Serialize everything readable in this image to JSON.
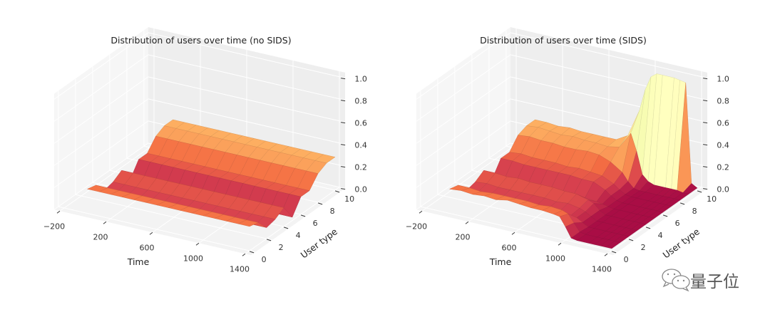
{
  "chart_data": [
    {
      "type": "surface3d",
      "title": "Distribution of users over time (no SIDS)",
      "xlabel": "Time",
      "ylabel": "User type",
      "colormap": "Spectral",
      "xlim": [
        -250,
        1450
      ],
      "ylim": [
        -0.5,
        10.5
      ],
      "zlim": [
        0,
        1.05
      ],
      "xticks": [
        -200,
        200,
        600,
        1000,
        1400
      ],
      "xtick_labels": [
        "−200",
        "200",
        "600",
        "1000",
        "1400"
      ],
      "yticks": [
        0,
        2,
        4,
        6,
        8,
        10
      ],
      "ytick_labels": [
        "0",
        "2",
        "4",
        "6",
        "8",
        "10"
      ],
      "zticks": [
        0,
        0.2,
        0.4,
        0.6,
        0.8,
        1.0
      ],
      "ztick_labels": [
        "0.0",
        "0.2",
        "0.4",
        "0.6",
        "0.8",
        "1.0"
      ],
      "user_type": [
        0,
        1,
        2,
        3,
        4,
        5,
        6,
        7,
        8,
        9,
        10
      ],
      "time": [
        0,
        100,
        200,
        300,
        400,
        500,
        600,
        700,
        800,
        900,
        1000,
        1100,
        1200,
        1300,
        1400
      ],
      "z": [
        [
          0.22,
          0.2,
          0.1,
          0.12,
          0.17,
          0.03,
          0.16,
          0.16,
          0.26,
          0.3,
          0.3
        ],
        [
          0.22,
          0.2,
          0.1,
          0.12,
          0.17,
          0.03,
          0.16,
          0.16,
          0.26,
          0.3,
          0.3
        ],
        [
          0.22,
          0.2,
          0.1,
          0.12,
          0.17,
          0.03,
          0.16,
          0.16,
          0.26,
          0.3,
          0.3
        ],
        [
          0.22,
          0.2,
          0.1,
          0.12,
          0.17,
          0.03,
          0.16,
          0.16,
          0.26,
          0.3,
          0.3
        ],
        [
          0.22,
          0.2,
          0.1,
          0.12,
          0.17,
          0.03,
          0.16,
          0.16,
          0.26,
          0.3,
          0.3
        ],
        [
          0.22,
          0.2,
          0.1,
          0.12,
          0.17,
          0.03,
          0.16,
          0.16,
          0.26,
          0.3,
          0.3
        ],
        [
          0.22,
          0.2,
          0.1,
          0.12,
          0.17,
          0.03,
          0.16,
          0.16,
          0.26,
          0.3,
          0.3
        ],
        [
          0.22,
          0.2,
          0.1,
          0.12,
          0.17,
          0.03,
          0.16,
          0.16,
          0.26,
          0.3,
          0.3
        ],
        [
          0.22,
          0.2,
          0.1,
          0.12,
          0.17,
          0.03,
          0.16,
          0.16,
          0.26,
          0.3,
          0.3
        ],
        [
          0.22,
          0.2,
          0.1,
          0.12,
          0.17,
          0.03,
          0.16,
          0.16,
          0.26,
          0.3,
          0.3
        ],
        [
          0.22,
          0.2,
          0.1,
          0.12,
          0.17,
          0.03,
          0.16,
          0.16,
          0.26,
          0.3,
          0.3
        ],
        [
          0.22,
          0.2,
          0.1,
          0.12,
          0.17,
          0.03,
          0.16,
          0.16,
          0.26,
          0.3,
          0.3
        ],
        [
          0.22,
          0.2,
          0.1,
          0.12,
          0.17,
          0.03,
          0.16,
          0.16,
          0.26,
          0.3,
          0.3
        ],
        [
          0.22,
          0.2,
          0.1,
          0.12,
          0.17,
          0.03,
          0.16,
          0.16,
          0.26,
          0.3,
          0.3
        ],
        [
          0.22,
          0.2,
          0.1,
          0.12,
          0.17,
          0.03,
          0.16,
          0.16,
          0.26,
          0.3,
          0.3
        ]
      ]
    },
    {
      "type": "surface3d",
      "title": "Distribution of users over time (SIDS)",
      "xlabel": "Time",
      "ylabel": "User type",
      "colormap": "Spectral",
      "xlim": [
        -250,
        1450
      ],
      "ylim": [
        -0.5,
        10.5
      ],
      "zlim": [
        0,
        1.05
      ],
      "xticks": [
        -200,
        200,
        600,
        1000,
        1400
      ],
      "xtick_labels": [
        "−200",
        "200",
        "600",
        "1000",
        "1400"
      ],
      "yticks": [
        0,
        2,
        4,
        6,
        8,
        10
      ],
      "ytick_labels": [
        "0",
        "2",
        "4",
        "6",
        "8",
        "10"
      ],
      "zticks": [
        0,
        0.2,
        0.4,
        0.6,
        0.8,
        1.0
      ],
      "ztick_labels": [
        "0.0",
        "0.2",
        "0.4",
        "0.6",
        "0.8",
        "1.0"
      ],
      "user_type": [
        0,
        1,
        2,
        3,
        4,
        5,
        6,
        7,
        8,
        9,
        10
      ],
      "time": [
        0,
        100,
        200,
        300,
        400,
        500,
        600,
        700,
        800,
        900,
        950,
        1000,
        1050,
        1100,
        1200,
        1250,
        1300,
        1350,
        1400
      ],
      "z": [
        [
          0.22,
          0.2,
          0.1,
          0.12,
          0.17,
          0.04,
          0.17,
          0.17,
          0.27,
          0.3,
          0.3
        ],
        [
          0.23,
          0.2,
          0.11,
          0.13,
          0.17,
          0.05,
          0.17,
          0.18,
          0.28,
          0.31,
          0.3
        ],
        [
          0.22,
          0.19,
          0.1,
          0.12,
          0.16,
          0.05,
          0.16,
          0.17,
          0.27,
          0.3,
          0.29
        ],
        [
          0.23,
          0.2,
          0.1,
          0.12,
          0.17,
          0.05,
          0.16,
          0.17,
          0.27,
          0.29,
          0.3
        ],
        [
          0.22,
          0.2,
          0.11,
          0.12,
          0.16,
          0.05,
          0.16,
          0.17,
          0.26,
          0.3,
          0.29
        ],
        [
          0.24,
          0.2,
          0.1,
          0.12,
          0.16,
          0.06,
          0.16,
          0.16,
          0.26,
          0.29,
          0.29
        ],
        [
          0.23,
          0.2,
          0.1,
          0.12,
          0.16,
          0.05,
          0.16,
          0.17,
          0.27,
          0.29,
          0.29
        ],
        [
          0.22,
          0.19,
          0.1,
          0.11,
          0.15,
          0.06,
          0.15,
          0.16,
          0.26,
          0.28,
          0.29
        ],
        [
          0.22,
          0.2,
          0.1,
          0.12,
          0.15,
          0.06,
          0.15,
          0.15,
          0.22,
          0.3,
          0.35
        ],
        [
          0.21,
          0.19,
          0.09,
          0.1,
          0.12,
          0.05,
          0.1,
          0.1,
          0.15,
          0.45,
          0.6
        ],
        [
          0.2,
          0.17,
          0.08,
          0.08,
          0.1,
          0.04,
          0.06,
          0.06,
          0.08,
          0.3,
          0.8
        ],
        [
          0.12,
          0.1,
          0.05,
          0.05,
          0.05,
          0.03,
          0.03,
          0.03,
          0.03,
          0.1,
          0.93
        ],
        [
          0.03,
          0.03,
          0.02,
          0.02,
          0.02,
          0.02,
          0.02,
          0.02,
          0.02,
          0.05,
          0.97
        ],
        [
          0.02,
          0.02,
          0.02,
          0.02,
          0.02,
          0.02,
          0.02,
          0.02,
          0.02,
          0.03,
          0.97
        ],
        [
          0.02,
          0.02,
          0.02,
          0.02,
          0.02,
          0.02,
          0.02,
          0.02,
          0.02,
          0.03,
          0.97
        ],
        [
          0.02,
          0.02,
          0.02,
          0.02,
          0.02,
          0.02,
          0.02,
          0.02,
          0.02,
          0.03,
          0.96
        ],
        [
          0.02,
          0.02,
          0.02,
          0.02,
          0.02,
          0.02,
          0.02,
          0.02,
          0.02,
          0.03,
          0.95
        ],
        [
          0.02,
          0.02,
          0.02,
          0.02,
          0.02,
          0.02,
          0.02,
          0.02,
          0.02,
          0.02,
          0.05
        ],
        [
          0.02,
          0.02,
          0.02,
          0.02,
          0.02,
          0.02,
          0.02,
          0.02,
          0.02,
          0.02,
          0.02
        ]
      ]
    }
  ],
  "watermark": {
    "text": "量子位"
  },
  "colors": {
    "spectral": [
      "#9e0142",
      "#d53e4f",
      "#f46d43",
      "#fdae61",
      "#fee08b",
      "#ffffbf",
      "#e6f598",
      "#abdda4",
      "#66c2a5",
      "#3288bd",
      "#5e4fa2"
    ],
    "pane_left": "#f6f6f6",
    "pane_back": "#eeeeee",
    "pane_floor": "#f3f3f3"
  }
}
